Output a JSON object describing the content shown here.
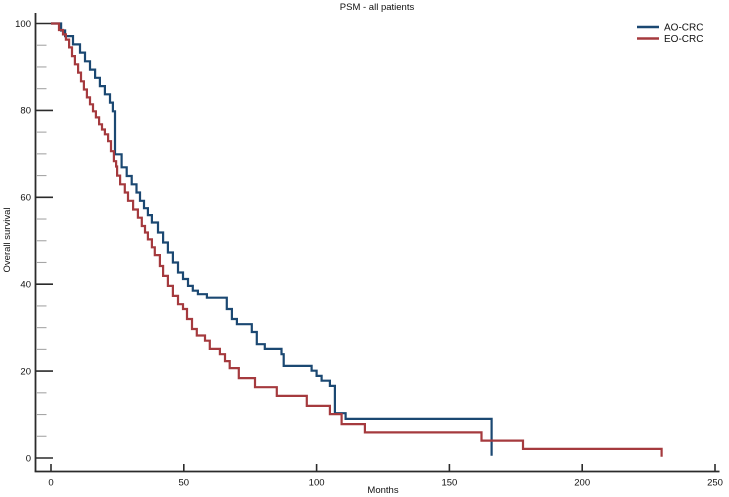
{
  "title": "PSM - all patients",
  "colors": {
    "ao_crc": "#1b4872",
    "eo_crc": "#a53a3e",
    "axis": "#2b2b2b",
    "minor_tick": "#a6a6a6",
    "text": "#111111",
    "background": "#ffffff"
  },
  "legend": {
    "position": "top-right",
    "items": [
      {
        "label": "AO-CRC",
        "color": "#1b4872"
      },
      {
        "label": "EO-CRC",
        "color": "#a53a3e"
      }
    ]
  },
  "chart_data": {
    "type": "line",
    "subtype": "kaplan-meier-step",
    "title": "PSM - all patients",
    "xlabel": "Months",
    "ylabel": "Overall survival",
    "xlim": [
      0,
      250
    ],
    "ylim": [
      0,
      100
    ],
    "x_ticks": [
      0,
      50,
      100,
      150,
      200,
      250
    ],
    "y_ticks": [
      0,
      20,
      40,
      60,
      80,
      100
    ],
    "y_minor_step": 5,
    "grid": false,
    "legend_position": "top-right",
    "series": [
      {
        "name": "AO-CRC",
        "color": "#1b4872",
        "steps": [
          [
            0,
            100
          ],
          [
            3.8,
            98.4
          ],
          [
            5.3,
            97.1
          ],
          [
            8.3,
            95.2
          ],
          [
            10.9,
            93.3
          ],
          [
            12.8,
            91.3
          ],
          [
            14.7,
            89.4
          ],
          [
            16.6,
            87.5
          ],
          [
            18.4,
            85.6
          ],
          [
            20.3,
            83.7
          ],
          [
            22.2,
            81.8
          ],
          [
            23.3,
            79.8
          ],
          [
            24.1,
            69.9
          ],
          [
            26.6,
            66.9
          ],
          [
            28.5,
            64.9
          ],
          [
            30.4,
            63.0
          ],
          [
            32.2,
            61.1
          ],
          [
            33.5,
            59.2
          ],
          [
            35.0,
            57.5
          ],
          [
            36.5,
            55.9
          ],
          [
            38.0,
            54.2
          ],
          [
            40.3,
            51.9
          ],
          [
            42.2,
            49.6
          ],
          [
            44.0,
            47.3
          ],
          [
            45.9,
            45.0
          ],
          [
            47.8,
            42.7
          ],
          [
            49.7,
            41.2
          ],
          [
            51.6,
            39.6
          ],
          [
            53.4,
            38.5
          ],
          [
            55.3,
            37.7
          ],
          [
            58.7,
            36.9
          ],
          [
            66.2,
            34.3
          ],
          [
            68.1,
            32.0
          ],
          [
            70.0,
            30.8
          ],
          [
            75.6,
            29.0
          ],
          [
            77.5,
            26.2
          ],
          [
            80.5,
            25.1
          ],
          [
            86.8,
            23.9
          ],
          [
            87.6,
            21.2
          ],
          [
            98.1,
            20.1
          ],
          [
            100.0,
            18.9
          ],
          [
            101.9,
            17.8
          ],
          [
            105.0,
            16.6
          ],
          [
            106.9,
            10.3
          ],
          [
            110.9,
            9.0
          ],
          [
            165.9,
            0.5
          ]
        ]
      },
      {
        "name": "EO-CRC",
        "color": "#a53a3e",
        "steps": [
          [
            0,
            100
          ],
          [
            3.0,
            98.5
          ],
          [
            4.5,
            97.5
          ],
          [
            5.6,
            96.3
          ],
          [
            6.8,
            94.5
          ],
          [
            7.9,
            92.5
          ],
          [
            9.0,
            90.6
          ],
          [
            10.2,
            88.7
          ],
          [
            11.3,
            86.7
          ],
          [
            12.4,
            84.8
          ],
          [
            13.5,
            83.0
          ],
          [
            14.7,
            81.4
          ],
          [
            15.8,
            79.8
          ],
          [
            16.9,
            78.4
          ],
          [
            18.1,
            76.8
          ],
          [
            19.2,
            75.6
          ],
          [
            20.3,
            74.5
          ],
          [
            21.5,
            72.9
          ],
          [
            22.6,
            70.6
          ],
          [
            23.7,
            68.3
          ],
          [
            24.5,
            67.1
          ],
          [
            24.9,
            65.0
          ],
          [
            26.0,
            63.0
          ],
          [
            27.8,
            61.1
          ],
          [
            29.0,
            59.2
          ],
          [
            30.9,
            57.2
          ],
          [
            32.7,
            55.3
          ],
          [
            34.2,
            53.4
          ],
          [
            35.4,
            51.9
          ],
          [
            36.5,
            50.3
          ],
          [
            38.0,
            48.5
          ],
          [
            39.1,
            46.7
          ],
          [
            41.0,
            44.2
          ],
          [
            42.2,
            41.9
          ],
          [
            44.0,
            39.6
          ],
          [
            45.9,
            37.3
          ],
          [
            47.8,
            35.4
          ],
          [
            49.7,
            34.3
          ],
          [
            51.2,
            32.0
          ],
          [
            53.1,
            29.7
          ],
          [
            54.9,
            28.2
          ],
          [
            58.0,
            27.0
          ],
          [
            59.8,
            25.1
          ],
          [
            63.6,
            23.9
          ],
          [
            65.5,
            22.3
          ],
          [
            67.3,
            20.7
          ],
          [
            70.7,
            18.4
          ],
          [
            76.8,
            16.3
          ],
          [
            85.0,
            14.3
          ],
          [
            96.3,
            12.0
          ],
          [
            105.0,
            10.1
          ],
          [
            109.4,
            7.8
          ],
          [
            118.2,
            5.9
          ],
          [
            162.1,
            4.0
          ],
          [
            177.7,
            2.1
          ],
          [
            229.9,
            0.3
          ]
        ]
      }
    ]
  }
}
